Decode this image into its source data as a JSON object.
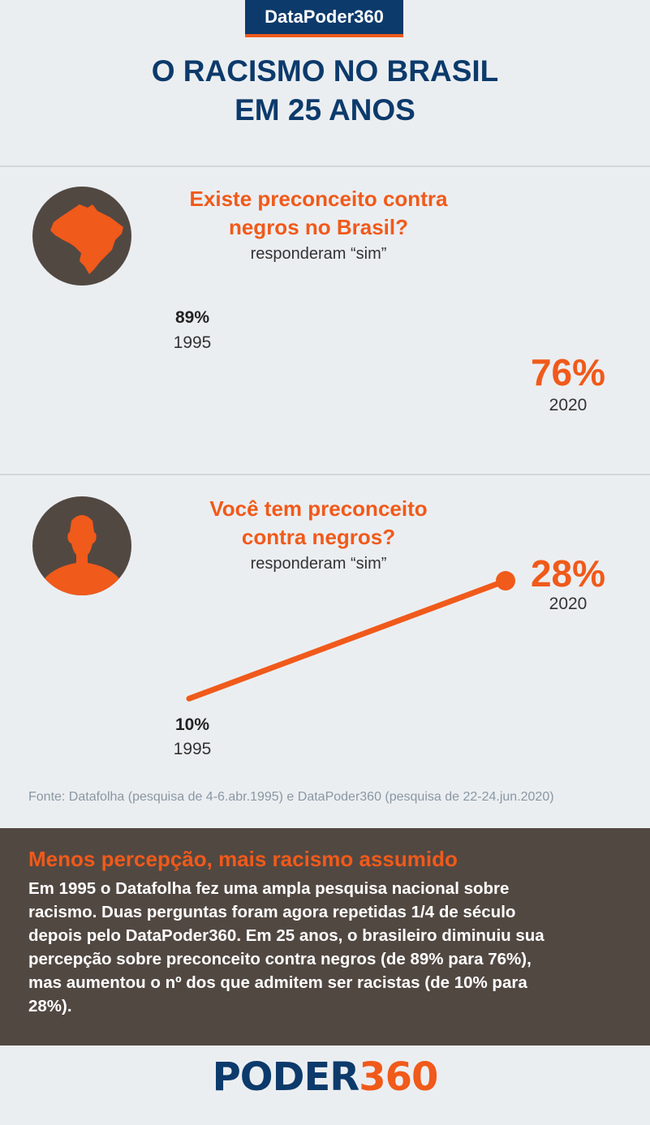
{
  "badge": "DataPoder360",
  "title_line1": "O RACISMO NO BRASIL",
  "title_line2": "EM 25 ANOS",
  "colors": {
    "accent": "#f05a1a",
    "brand_blue": "#0c3a6b",
    "dark_brown": "#524842",
    "background": "#ebeef1"
  },
  "charts": [
    {
      "question_line1": "Existe preconceito contra",
      "question_line2": "negros no Brasil?",
      "subtitle": "responderam “sim”",
      "icon": "brazil-map-icon",
      "start": {
        "label": "89%",
        "year": "1995"
      },
      "end": {
        "label": "76%",
        "year": "2020"
      }
    },
    {
      "question_line1": "Você tem preconceito",
      "question_line2": "contra negros?",
      "subtitle": "responderam “sim”",
      "icon": "person-silhouette-icon",
      "start": {
        "label": "10%",
        "year": "1995"
      },
      "end": {
        "label": "28%",
        "year": "2020"
      }
    }
  ],
  "chart_data": [
    {
      "type": "line",
      "title": "Existe preconceito contra negros no Brasil?",
      "subtitle": "responderam “sim”",
      "x": [
        "1995",
        "2020"
      ],
      "values": [
        89,
        76
      ]
    },
    {
      "type": "line",
      "title": "Você tem preconceito contra negros?",
      "subtitle": "responderam “sim”",
      "x": [
        "1995",
        "2020"
      ],
      "values": [
        10,
        28
      ]
    }
  ],
  "source": "Fonte: Datafolha (pesquisa de 4-6.abr.1995) e DataPoder360 (pesquisa de 22-24.jun.2020)",
  "textbox": {
    "heading": "Menos percepção, mais racismo assumido",
    "line1": "Em 1995 o Datafolha fez uma ampla pesquisa nacional sobre",
    "line2": "racismo. Duas perguntas foram agora repetidas 1/4 de século",
    "line3": "depois pelo DataPoder360. Em 25 anos, o brasileiro diminuiu sua",
    "line4": "percepção sobre preconceito contra negros (de 89% para 76%),",
    "line5": "mas aumentou o nº dos que admitem ser racistas (de 10% para",
    "line6": "28%)."
  },
  "logo": {
    "part1": "PODER",
    "part2": "360"
  }
}
